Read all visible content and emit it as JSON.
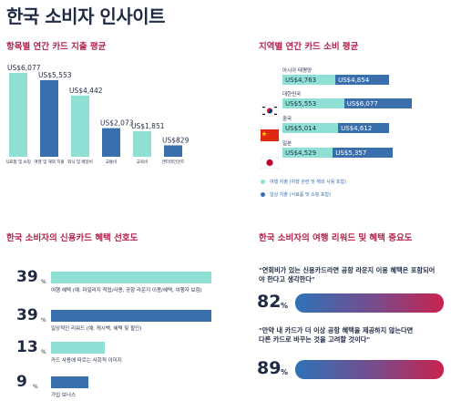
{
  "title": "한국 소비자 인사이트",
  "spending": {
    "title": "항목별 연간 카드 지출 평균",
    "chart_data": {
      "type": "bar",
      "title": "항목별 연간 카드 지출 평균",
      "categories": [
        "식료품 및 쇼핑",
        "여행 및 해외 지출",
        "외식 및 배달비",
        "교통비",
        "교육비",
        "엔터테인먼트"
      ],
      "values": [
        6077,
        5553,
        4442,
        2073,
        1851,
        829
      ],
      "value_labels": [
        "US$6,077",
        "US$5,553",
        "US$4,442",
        "US$2,073",
        "US$1,851",
        "US$829"
      ],
      "colors": [
        "#8de0d3",
        "#3a6fae",
        "#8de0d3",
        "#3a6fae",
        "#8de0d3",
        "#3a6fae"
      ],
      "ylim": [
        0,
        6077
      ],
      "grid": false
    }
  },
  "regional": {
    "title": "지역별 연간 카드 소비 평균",
    "chart_data": {
      "type": "bar",
      "title": "지역별 연간 카드 소비 평균",
      "categories": [
        "아시아 태평양",
        "대한민국",
        "중국",
        "일본"
      ],
      "series": [
        {
          "name": "여행 지출 (여행 관련 및 해외 사용 포함)",
          "values": [
            4763,
            5553,
            5014,
            4529
          ],
          "labels": [
            "US$4,763",
            "US$5,553",
            "US$5,014",
            "US$4,529"
          ],
          "color": "#8de0d3"
        },
        {
          "name": "일상 지출 (식료품 및 쇼핑 포함)",
          "values": [
            4854,
            6077,
            4612,
            5357
          ],
          "labels": [
            "US$4,854",
            "US$6,077",
            "US$4,612",
            "US$5,357"
          ],
          "color": "#3a6fae"
        }
      ],
      "legend": "bottom-left",
      "grid": false
    }
  },
  "preference": {
    "title": "한국 소비자의 신용카드 혜택 선호도",
    "chart_data": {
      "type": "bar",
      "title": "한국 소비자의 신용카드 혜택 선호도",
      "categories": [
        "여행 혜택 (예: 마일리지 적립/사용, 공항 라운지 이용/혜택, 여행자 보험)",
        "일상적인 리워드 (예: 캐시백, 혜택 및 할인)",
        "카드 사용에 따르는 사회적 이미지",
        "가입 보너스"
      ],
      "values": [
        39,
        39,
        13,
        9
      ],
      "colors": [
        "#8de0d3",
        "#3a6fae",
        "#8de0d3",
        "#3a6fae"
      ],
      "unit": "%",
      "xlim": [
        0,
        39
      ]
    }
  },
  "importance": {
    "title": "한국 소비자의 여행 리워드 및 혜택 중요도",
    "items": [
      {
        "quote_line1": "\"연회비가 있는 신용카드라면 공항 라운지 이용 혜택은 포함되어",
        "quote_line2": "야 한다고 생각한다\"",
        "value": "82",
        "sign": "%"
      },
      {
        "quote_line1": "\"만약 내 카드가 더 이상 공항 혜택을 제공하지 않는다면",
        "quote_line2": "다른 카드로 바꾸는 것을 고려할 것이다\"",
        "value": "89",
        "sign": "%"
      }
    ]
  }
}
